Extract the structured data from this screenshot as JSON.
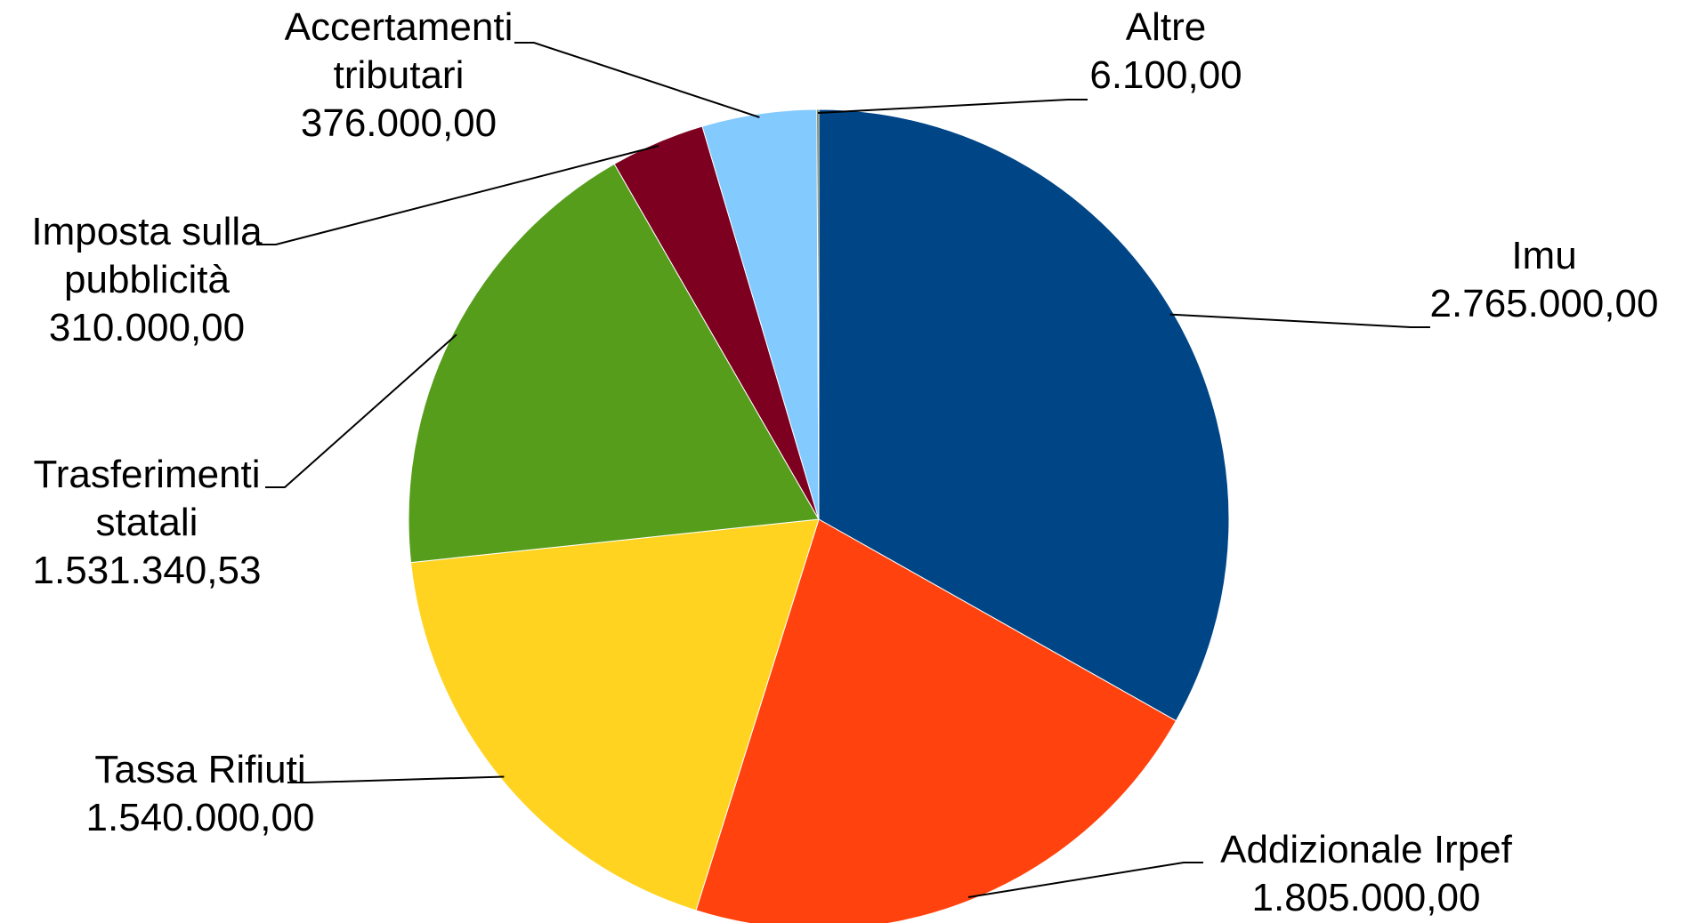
{
  "chart_data": {
    "type": "pie",
    "title": "",
    "series": [
      {
        "values": [
          2765000.0,
          1805000.0,
          1540000.0,
          1531340.53,
          310000.0,
          376000.0,
          6100.0
        ]
      }
    ],
    "slices": [
      {
        "label_lines": [
          "Imu"
        ],
        "value": 2765000.0,
        "value_text": "2.765.000,00",
        "color": "#004586"
      },
      {
        "label_lines": [
          "Addizionale Irpef"
        ],
        "value": 1805000.0,
        "value_text": "1.805.000,00",
        "color": "#ff420e"
      },
      {
        "label_lines": [
          "Tassa Rifiuti"
        ],
        "value": 1540000.0,
        "value_text": "1.540.000,00",
        "color": "#ffd320"
      },
      {
        "label_lines": [
          "Trasferimenti",
          "statali"
        ],
        "value": 1531340.53,
        "value_text": "1.531.340,53",
        "color": "#579d1c"
      },
      {
        "label_lines": [
          "Imposta sulla",
          "pubblicità"
        ],
        "value": 310000.0,
        "value_text": "310.000,00",
        "color": "#7e0021"
      },
      {
        "label_lines": [
          "Accertamenti",
          "tributari"
        ],
        "value": 376000.0,
        "value_text": "376.000,00",
        "color": "#83caff"
      },
      {
        "label_lines": [
          "Altre"
        ],
        "value": 6100.0,
        "value_text": "6.100,00",
        "color": "#314004"
      }
    ],
    "start_angle": "12 o'clock",
    "direction": "clockwise",
    "legend": "none",
    "data_labels": "outside with leader lines"
  }
}
